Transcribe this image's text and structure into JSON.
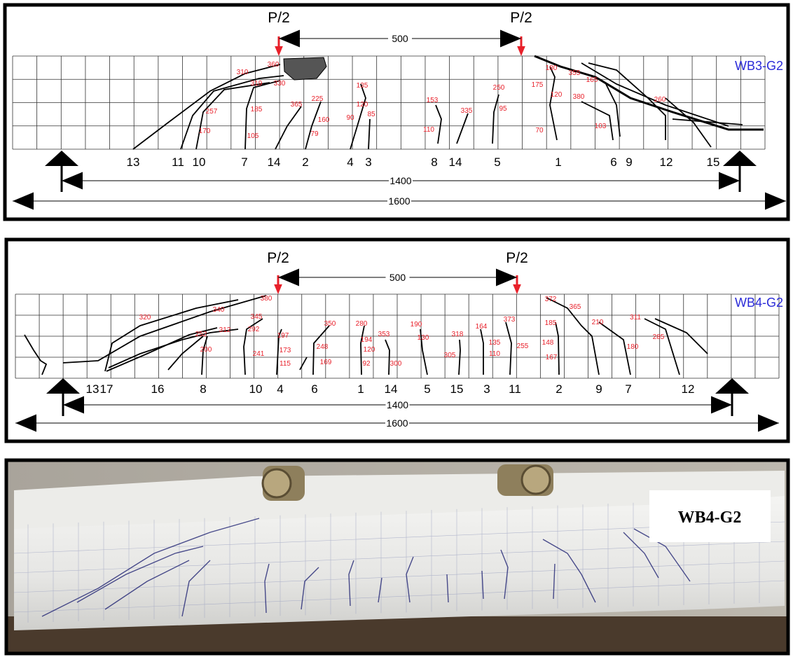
{
  "panels": [
    {
      "label": "WB3-G2",
      "load_labels": [
        "P/2",
        "P/2"
      ],
      "load_spacing": "500",
      "support_span": "1400",
      "total_length": "1600",
      "crack_numbers": [
        "13",
        "11",
        "10",
        "7",
        "14",
        "2",
        "4",
        "3",
        "8",
        "14",
        "5",
        "1",
        "6",
        "9",
        "12",
        "15"
      ],
      "load_annotations": [
        "310",
        "360",
        "319",
        "330",
        "257",
        "185",
        "365",
        "225",
        "160",
        "170",
        "105",
        "79",
        "135",
        "120",
        "90",
        "85",
        "153",
        "110",
        "335",
        "250",
        "95",
        "180",
        "355",
        "165",
        "175",
        "120",
        "380",
        "260",
        "103",
        "70"
      ]
    },
    {
      "label": "WB4-G2",
      "load_labels": [
        "P/2",
        "P/2"
      ],
      "load_spacing": "500",
      "support_span": "1400",
      "total_length": "1600",
      "crack_numbers": [
        "13",
        "17",
        "16",
        "8",
        "10",
        "4",
        "6",
        "1",
        "14",
        "5",
        "15",
        "3",
        "11",
        "2",
        "9",
        "7",
        "12"
      ],
      "load_annotations": [
        "380",
        "340",
        "320",
        "345",
        "292",
        "312",
        "252",
        "200",
        "197",
        "173",
        "241",
        "115",
        "350",
        "248",
        "169",
        "280",
        "194",
        "120",
        "92",
        "353",
        "300",
        "190",
        "130",
        "318",
        "305",
        "164",
        "135",
        "110",
        "373",
        "255",
        "372",
        "365",
        "185",
        "210",
        "148",
        "167",
        "180",
        "311",
        "285"
      ]
    }
  ],
  "photo": {
    "label": "WB4-G2"
  }
}
